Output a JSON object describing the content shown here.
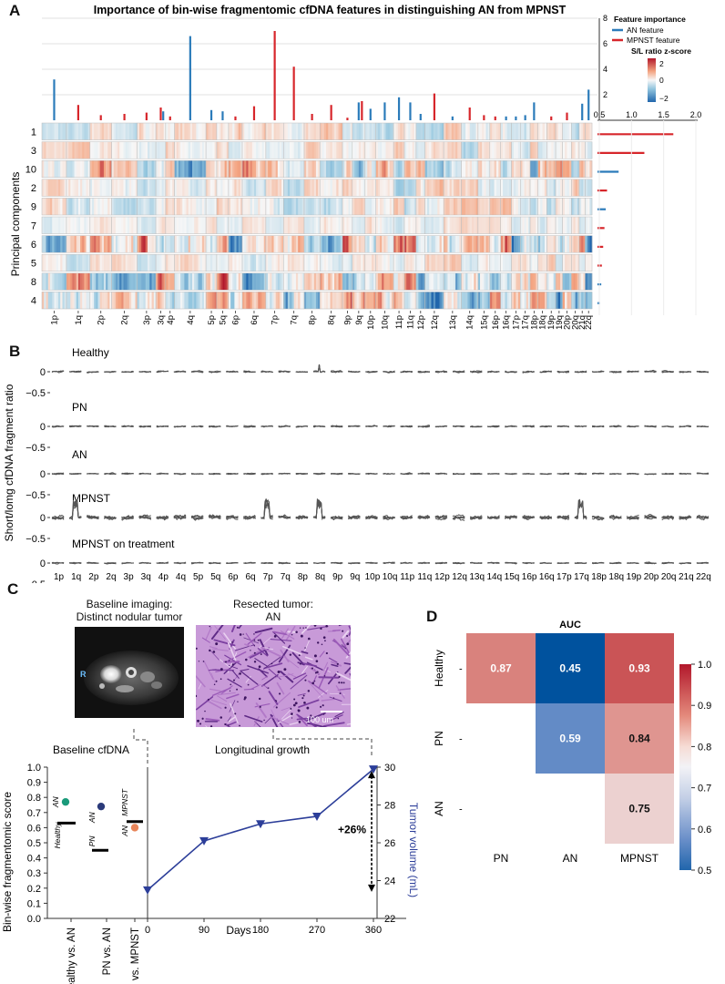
{
  "panel_labels": {
    "a": "A",
    "b": "B",
    "c": "C",
    "d": "D"
  },
  "panel_a": {
    "title": "Importance of bin-wise fragmentomic cfDNA features in distinguishing AN from MPNST",
    "legend_title": "Feature importance",
    "legend_an": "AN feature",
    "legend_mpnst": "MPNST feature",
    "colorbar_title": "S/L ratio z-score",
    "colorbar_ticks": [
      "2",
      "0",
      "−2"
    ],
    "ylabel": "Principal components",
    "colors": {
      "an": "#2b7bba",
      "mpnst": "#d7262b",
      "pos": "#c0392b",
      "neg": "#2166ac"
    }
  },
  "panel_b": {
    "ylabel": "Short/lomg cfDNA fragment ratio",
    "groups": [
      "Healthy",
      "PN",
      "AN",
      "MPNST",
      "MPNST on treatment"
    ],
    "ytick_zero": "0",
    "ytick_neg": "−0.5",
    "arms": [
      "1p",
      "1q",
      "2p",
      "2q",
      "3p",
      "3q",
      "4p",
      "4q",
      "5p",
      "5q",
      "6p",
      "6q",
      "7p",
      "7q",
      "8p",
      "8q",
      "9p",
      "9q",
      "10p",
      "10q",
      "11p",
      "11q",
      "12p",
      "12q",
      "13q",
      "14q",
      "15q",
      "16p",
      "16q",
      "17p",
      "17q",
      "18p",
      "18q",
      "19p",
      "20p",
      "20q",
      "21q",
      "22q"
    ]
  },
  "panel_c": {
    "baseline_imaging_l1": "Baseline imaging:",
    "baseline_imaging_l2": "Distinct nodular tumor",
    "resected_l1": "Resected tumor:",
    "resected_l2": "AN",
    "mri_marker": "R",
    "scale_bar": "100 um",
    "section_baseline": "Baseline cfDNA",
    "section_long": "Longitudinal growth",
    "ylabel": "Bin-wise fragmentomic score",
    "y2label": "Tumor volume (mL)",
    "xlabel": "Days",
    "growth_label": "+26%",
    "colors": {
      "healthy": "#1a9a7a",
      "pn": "#2b3a7a",
      "mpnst": "#e8855a",
      "line": "#2c3e99"
    }
  },
  "panel_d": {
    "title": "AUC",
    "colorbar_ticks": [
      "1.0",
      "0.9",
      "0.8",
      "0.7",
      "0.6",
      "0.5"
    ]
  },
  "chart_data": [
    {
      "id": "A",
      "type": "bar",
      "title": "Importance of bin-wise fragmentomic cfDNA features in distinguishing AN from MPNST",
      "top_ylim": [
        0,
        8
      ],
      "top_yticks": [
        "2",
        "4",
        "6",
        "8"
      ],
      "top_bars": [
        {
          "arm": "1p",
          "value": 3.2,
          "type": "AN"
        },
        {
          "arm": "1q",
          "value": 1.2,
          "type": "MPNST"
        },
        {
          "arm": "2p",
          "value": 0.4,
          "type": "MPNST"
        },
        {
          "arm": "2q",
          "value": 0.5,
          "type": "MPNST"
        },
        {
          "arm": "3p",
          "value": 0.6,
          "type": "MPNST"
        },
        {
          "arm": "3q",
          "value": 1.0,
          "type": "MPNST"
        },
        {
          "arm": "3q",
          "value": 0.7,
          "type": "AN"
        },
        {
          "arm": "4p",
          "value": 0.3,
          "type": "MPNST"
        },
        {
          "arm": "4q",
          "value": 6.6,
          "type": "AN"
        },
        {
          "arm": "5p",
          "value": 0.8,
          "type": "AN"
        },
        {
          "arm": "5q",
          "value": 0.7,
          "type": "AN"
        },
        {
          "arm": "6p",
          "value": 0.3,
          "type": "MPNST"
        },
        {
          "arm": "6q",
          "value": 1.1,
          "type": "MPNST"
        },
        {
          "arm": "7p",
          "value": 7.0,
          "type": "MPNST"
        },
        {
          "arm": "7q",
          "value": 4.2,
          "type": "MPNST"
        },
        {
          "arm": "8p",
          "value": 0.5,
          "type": "MPNST"
        },
        {
          "arm": "8q",
          "value": 1.2,
          "type": "MPNST"
        },
        {
          "arm": "9p",
          "value": 0.2,
          "type": "MPNST"
        },
        {
          "arm": "9q",
          "value": 1.4,
          "type": "AN"
        },
        {
          "arm": "9q",
          "value": 1.5,
          "type": "MPNST"
        },
        {
          "arm": "10p",
          "value": 0.9,
          "type": "AN"
        },
        {
          "arm": "10q",
          "value": 1.4,
          "type": "AN"
        },
        {
          "arm": "11p",
          "value": 1.8,
          "type": "AN"
        },
        {
          "arm": "11q",
          "value": 1.4,
          "type": "AN"
        },
        {
          "arm": "12p",
          "value": 0.5,
          "type": "AN"
        },
        {
          "arm": "12q",
          "value": 2.1,
          "type": "MPNST"
        },
        {
          "arm": "13q",
          "value": 0.3,
          "type": "AN"
        },
        {
          "arm": "14q",
          "value": 1.0,
          "type": "MPNST"
        },
        {
          "arm": "15q",
          "value": 0.4,
          "type": "MPNST"
        },
        {
          "arm": "16p",
          "value": 0.3,
          "type": "MPNST"
        },
        {
          "arm": "16q",
          "value": 0.3,
          "type": "AN"
        },
        {
          "arm": "17p",
          "value": 0.3,
          "type": "AN"
        },
        {
          "arm": "17q",
          "value": 0.4,
          "type": "AN"
        },
        {
          "arm": "18p",
          "value": 1.4,
          "type": "AN"
        },
        {
          "arm": "19p",
          "value": 0.3,
          "type": "MPNST"
        },
        {
          "arm": "20p",
          "value": 0.6,
          "type": "MPNST"
        },
        {
          "arm": "21q",
          "value": 1.3,
          "type": "AN"
        },
        {
          "arm": "22q",
          "value": 2.4,
          "type": "AN"
        }
      ],
      "components": [
        "1",
        "3",
        "10",
        "2",
        "9",
        "7",
        "6",
        "5",
        "8",
        "4"
      ],
      "side_xlim": [
        0.5,
        2.0
      ],
      "side_xticks": [
        "0.5",
        "1.0",
        "1.5",
        "2.0"
      ],
      "side_bars": [
        {
          "pc": "1",
          "value": 1.65,
          "type": "MPNST"
        },
        {
          "pc": "3",
          "value": 1.2,
          "type": "MPNST"
        },
        {
          "pc": "10",
          "value": 0.8,
          "type": "AN"
        },
        {
          "pc": "2",
          "value": 0.62,
          "type": "MPNST"
        },
        {
          "pc": "9",
          "value": 0.6,
          "type": "AN"
        },
        {
          "pc": "7",
          "value": 0.58,
          "type": "MPNST"
        },
        {
          "pc": "6",
          "value": 0.56,
          "type": "MPNST"
        },
        {
          "pc": "5",
          "value": 0.54,
          "type": "MPNST"
        },
        {
          "pc": "8",
          "value": 0.53,
          "type": "AN"
        },
        {
          "pc": "4",
          "value": 0.51,
          "type": "AN"
        }
      ],
      "xtick_labels": [
        "1p",
        "1q",
        "2p",
        "2q",
        "3p",
        "3q",
        "4p",
        "4q",
        "5p",
        "5q",
        "6p",
        "6q",
        "7p",
        "7q",
        "8p",
        "8q",
        "9p",
        "9q",
        "10p",
        "10q",
        "11p",
        "11q",
        "12p",
        "12q",
        "13q",
        "14q",
        "15q",
        "16p",
        "16q",
        "17p",
        "17q",
        "18p",
        "18q",
        "19p",
        "19q",
        "20p",
        "20q",
        "21q",
        "22q"
      ],
      "colorbar_range": [
        -2,
        2
      ]
    },
    {
      "id": "B",
      "type": "line",
      "ylabel": "Short/lomg cfDNA fragment ratio",
      "ylim": [
        -0.5,
        0.5
      ],
      "series": [
        "Healthy",
        "PN",
        "AN",
        "MPNST",
        "MPNST on treatment"
      ]
    },
    {
      "id": "C-left",
      "type": "scatter",
      "ylabel": "Bin-wise fragmentomic score",
      "ylim": [
        0.0,
        1.0
      ],
      "yticks": [
        "0.0",
        "0.1",
        "0.2",
        "0.3",
        "0.4",
        "0.5",
        "0.6",
        "0.7",
        "0.8",
        "0.9",
        "1.0"
      ],
      "categories": [
        "Healthy vs. AN",
        "PN vs. AN",
        "AN vs. MPNST"
      ],
      "points": [
        {
          "comparison": "Healthy vs. AN",
          "group": "Healthy",
          "median": 0.63
        },
        {
          "comparison": "Healthy vs. AN",
          "group": "AN",
          "value": 0.77
        },
        {
          "comparison": "PN vs. AN",
          "group": "PN",
          "median": 0.45
        },
        {
          "comparison": "PN vs. AN",
          "group": "AN",
          "value": 0.74
        },
        {
          "comparison": "AN vs. MPNST",
          "group": "AN",
          "median": 0.64
        },
        {
          "comparison": "AN vs. MPNST",
          "group": "MPNST",
          "value": 0.6
        }
      ]
    },
    {
      "id": "C-right",
      "type": "line",
      "xlabel": "Days",
      "ylabel": "Tumor volume (mL)",
      "x": [
        0,
        90,
        180,
        270,
        360
      ],
      "xticks": [
        "0",
        "90",
        "180",
        "270",
        "360"
      ],
      "y": [
        23.5,
        26.1,
        27.0,
        27.4,
        29.9
      ],
      "ylim": [
        22,
        30
      ],
      "yticks": [
        "22",
        "24",
        "26",
        "28",
        "30"
      ],
      "annotation": "+26%"
    },
    {
      "id": "D",
      "type": "heatmap",
      "title": "AUC",
      "rows": [
        "Healthy",
        "PN",
        "AN"
      ],
      "cols": [
        "PN",
        "AN",
        "MPNST"
      ],
      "values": [
        [
          0.87,
          0.45,
          0.93
        ],
        [
          null,
          0.59,
          0.84
        ],
        [
          null,
          null,
          0.75
        ]
      ],
      "colorbar_range": [
        0.5,
        1.0
      ]
    }
  ]
}
